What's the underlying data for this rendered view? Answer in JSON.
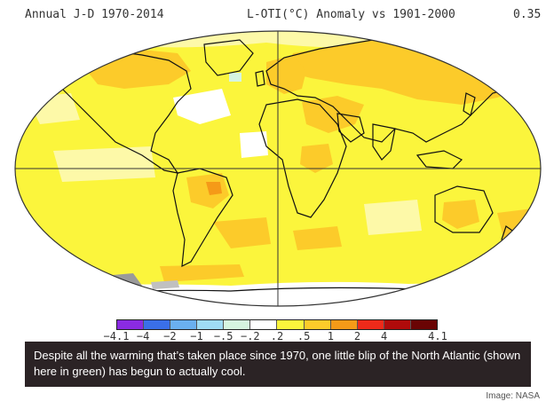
{
  "header": {
    "left": "Annual J-D 1970-2014",
    "center": "L-OTI(°C) Anomaly vs 1901-2000",
    "right": "0.35"
  },
  "legend": {
    "colors": [
      "#8a2be2",
      "#3a6fe8",
      "#6ab0ef",
      "#9fdcf5",
      "#d6f5e0",
      "#ffffff",
      "#fbf53c",
      "#fccb2a",
      "#f59a18",
      "#ee2a1a",
      "#b00b0b",
      "#6a0404"
    ],
    "labels": [
      "−4.1",
      "−4",
      "−2",
      "−1",
      "−.5",
      "−.2",
      ".2",
      ".5",
      "1",
      "2",
      "4",
      "4.1"
    ]
  },
  "caption": {
    "text": "Despite all the warming that’s taken place since 1970, one little blip of the North Atlantic (shown here in green) has begun to actually cool."
  },
  "credit": "Image: NASA"
}
